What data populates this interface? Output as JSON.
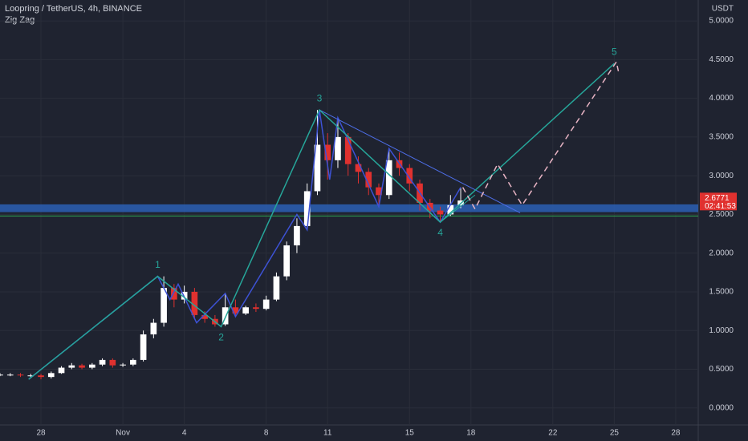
{
  "chart_data": {
    "type": "candlestick",
    "title": "Loopring / TetherUS, 4h, BINANCE",
    "indicator": "Zig Zag",
    "y_axis_label": "USDT",
    "x": [
      -2,
      -1.5,
      -1,
      -0.5,
      0,
      0.5,
      1,
      1.5,
      2,
      2.5,
      3,
      3.5,
      4,
      4.5,
      5,
      5.5,
      6,
      6.5,
      7,
      7.5,
      8,
      8.5,
      9,
      9.5,
      10,
      10.5,
      11,
      11.5,
      12,
      12.5,
      13,
      13.5,
      14,
      14.5,
      15,
      15.5,
      16,
      16.5,
      17,
      17.5,
      18,
      18.5,
      19,
      19.5,
      20,
      20.5
    ],
    "open": [
      0.43,
      0.43,
      0.43,
      0.42,
      0.42,
      0.4,
      0.45,
      0.52,
      0.55,
      0.52,
      0.56,
      0.62,
      0.55,
      0.56,
      0.62,
      0.95,
      1.1,
      1.55,
      1.4,
      1.5,
      1.2,
      1.15,
      1.08,
      1.3,
      1.22,
      1.3,
      1.28,
      1.4,
      1.7,
      2.1,
      2.35,
      2.8,
      3.4,
      3.2,
      3.5,
      3.15,
      3.05,
      2.85,
      2.75,
      3.2,
      3.1,
      2.9,
      2.65,
      2.55,
      2.5,
      2.62
    ],
    "high": [
      0.45,
      0.45,
      0.45,
      0.44,
      0.44,
      0.47,
      0.54,
      0.58,
      0.57,
      0.58,
      0.64,
      0.64,
      0.58,
      0.64,
      1.0,
      1.15,
      1.7,
      1.6,
      1.58,
      1.55,
      1.25,
      1.2,
      1.48,
      1.4,
      1.32,
      1.35,
      1.45,
      1.75,
      2.15,
      2.45,
      2.9,
      3.85,
      3.55,
      3.75,
      3.55,
      3.25,
      3.1,
      2.9,
      3.35,
      3.3,
      3.15,
      2.95,
      2.7,
      2.6,
      2.75,
      2.85
    ],
    "low": [
      0.41,
      0.41,
      0.4,
      0.4,
      0.37,
      0.38,
      0.44,
      0.5,
      0.5,
      0.5,
      0.54,
      0.52,
      0.53,
      0.54,
      0.6,
      0.9,
      1.05,
      1.3,
      1.35,
      1.15,
      1.1,
      1.05,
      1.06,
      1.18,
      1.2,
      1.24,
      1.26,
      1.38,
      1.65,
      2.0,
      2.3,
      2.75,
      2.95,
      3.1,
      3.0,
      2.9,
      2.75,
      2.6,
      2.7,
      3.0,
      2.8,
      2.55,
      2.45,
      2.4,
      2.48,
      2.58
    ],
    "close": [
      0.43,
      0.43,
      0.42,
      0.42,
      0.4,
      0.45,
      0.52,
      0.55,
      0.52,
      0.56,
      0.62,
      0.55,
      0.56,
      0.62,
      0.95,
      1.1,
      1.55,
      1.4,
      1.5,
      1.2,
      1.15,
      1.08,
      1.3,
      1.22,
      1.3,
      1.28,
      1.4,
      1.7,
      2.1,
      2.35,
      2.8,
      3.4,
      3.2,
      3.5,
      3.15,
      3.05,
      2.85,
      2.75,
      3.2,
      3.1,
      2.9,
      2.65,
      2.55,
      2.5,
      2.62,
      2.68
    ],
    "up_color": "#ffffff",
    "down_color": "#e0312f",
    "xlim": [
      -2,
      32.1
    ],
    "xticks": [
      {
        "value": 0,
        "label": "28"
      },
      {
        "value": 4,
        "label": "Nov"
      },
      {
        "value": 7,
        "label": "4"
      },
      {
        "value": 11,
        "label": "8"
      },
      {
        "value": 14,
        "label": "11"
      },
      {
        "value": 18,
        "label": "15"
      },
      {
        "value": 21,
        "label": "18"
      },
      {
        "value": 25,
        "label": "22"
      },
      {
        "value": 28,
        "label": "25"
      },
      {
        "value": 31,
        "label": "28"
      }
    ],
    "ylim": [
      -0.22,
      5.27
    ],
    "yticks": [
      {
        "value": 0,
        "label": "0.0000"
      },
      {
        "value": 0.5,
        "label": "0.5000"
      },
      {
        "value": 1,
        "label": "1.0000"
      },
      {
        "value": 1.5,
        "label": "1.5000"
      },
      {
        "value": 2,
        "label": "2.0000"
      },
      {
        "value": 2.5,
        "label": "2.5000"
      },
      {
        "value": 3,
        "label": "3.0000"
      },
      {
        "value": 3.5,
        "label": "3.5000"
      },
      {
        "value": 4,
        "label": "4.0000"
      },
      {
        "value": 4.5,
        "label": "4.5000"
      },
      {
        "value": 5,
        "label": "5.0000"
      }
    ],
    "grid": true,
    "last_price": {
      "value": 2.6771,
      "label": "2.6771"
    },
    "countdown": "02:41:53",
    "waves": {
      "color": "#26a69a",
      "x": [
        -0.6,
        5.7,
        8.8,
        13.6,
        19.5,
        28.0
      ],
      "y": [
        0.37,
        1.7,
        1.05,
        3.85,
        2.4,
        4.45
      ],
      "labels": [
        null,
        "1",
        "2",
        "3",
        "4",
        "5"
      ]
    },
    "projection": {
      "color": "#e8b4c4",
      "x": [
        20.6,
        21.2,
        22.3,
        23.5,
        28.1,
        28.2
      ],
      "y": [
        2.85,
        2.57,
        3.15,
        2.62,
        4.47,
        4.35
      ]
    },
    "zigzag": {
      "color": "#3d52d5",
      "x": [
        -0.6,
        5.7,
        6.3,
        6.7,
        7.6,
        9.0,
        9.5,
        12.5,
        13.0,
        13.6,
        14.1,
        14.5,
        16.5,
        17.0,
        19.5,
        20.5
      ],
      "y": [
        0.37,
        1.7,
        1.4,
        1.6,
        1.1,
        1.48,
        1.18,
        2.5,
        2.3,
        3.85,
        2.95,
        3.75,
        2.6,
        3.35,
        2.4,
        2.85
      ]
    },
    "trendlines": [
      {
        "color": "#4d6ee8",
        "x": [
          13.6,
          23.4
        ],
        "y": [
          3.85,
          2.52
        ]
      },
      {
        "color": "#26a69a",
        "x": [
          19.5,
          21.2
        ],
        "y": [
          2.4,
          2.75
        ]
      }
    ],
    "zone": {
      "color": "#2b5fb4",
      "y": [
        2.53,
        2.63
      ]
    },
    "support": {
      "color": "#2ea84f",
      "y": 2.48
    }
  }
}
